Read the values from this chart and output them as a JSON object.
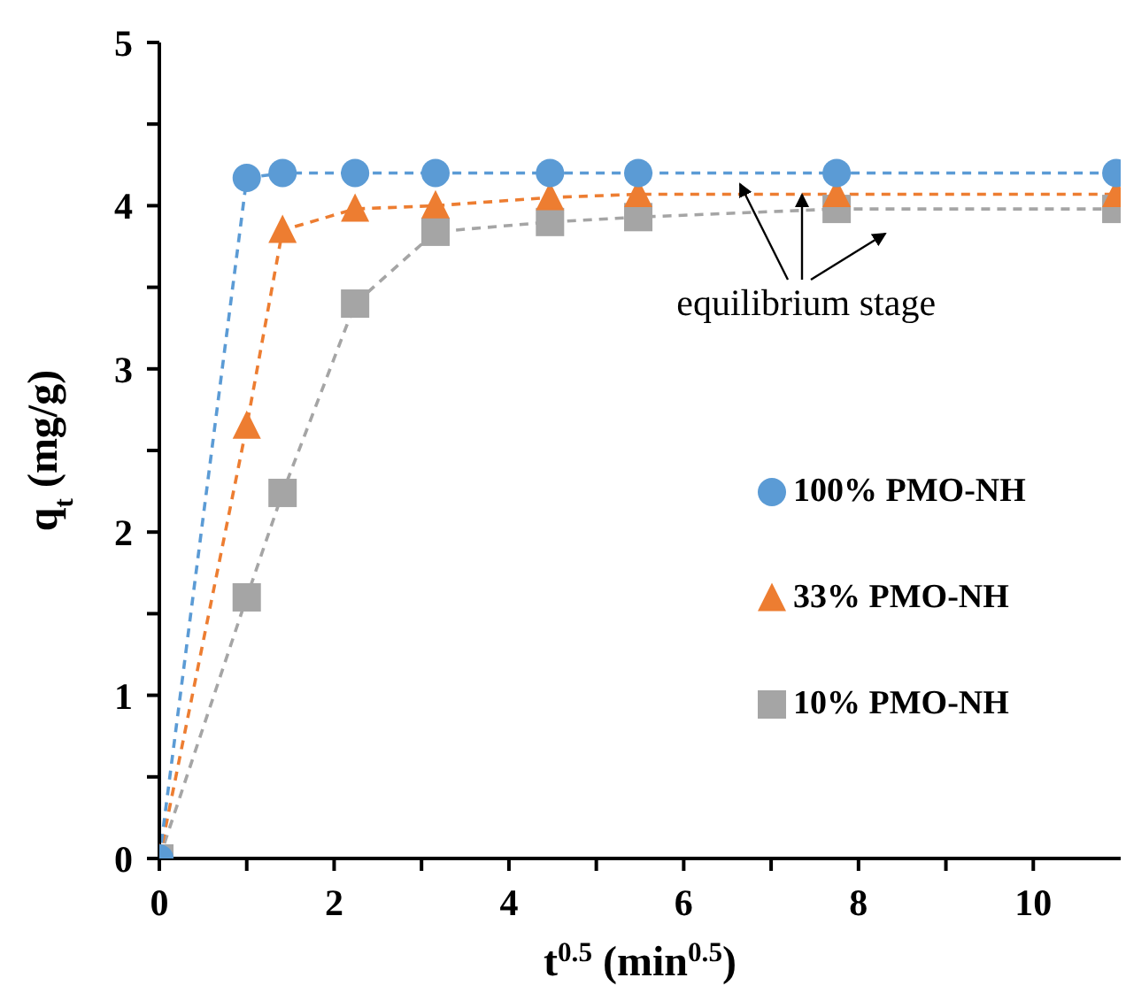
{
  "chart_data": {
    "type": "line",
    "xlabel": "t$^{0.5}$ (min$^{0.5}$)",
    "ylabel": "q$_{t}$ (mg/g)",
    "x": [
      0,
      1,
      1.41,
      2.24,
      3.16,
      4.47,
      5.48,
      7.75,
      10.95
    ],
    "xlim": [
      0,
      11
    ],
    "xticks": [
      0,
      {
        "value": 1,
        "label": null
      },
      2,
      {
        "value": 3,
        "label": null
      },
      4,
      {
        "value": 5,
        "label": null
      },
      6,
      {
        "value": 7,
        "label": null
      },
      8,
      {
        "value": 9,
        "label": null
      },
      10
    ],
    "ylim": [
      0,
      5
    ],
    "yticks": [
      0,
      {
        "value": 0.5,
        "label": null
      },
      1,
      {
        "value": 1.5,
        "label": null
      },
      2,
      {
        "value": 2.5,
        "label": null
      },
      3,
      {
        "value": 3.5,
        "label": null
      },
      4,
      {
        "value": 4.5,
        "label": null
      },
      5
    ],
    "line_style": "dashed",
    "legend": "right",
    "grid": false,
    "annotations": [
      {
        "text": "equilibrium stage",
        "x": 7.3,
        "y": 4.07
      }
    ],
    "series": [
      {
        "name": "100% PMO-NH",
        "color": "#5b9bd5",
        "marker": "circle",
        "values": [
          0,
          4.17,
          4.2,
          4.2,
          4.2,
          4.2,
          4.2,
          4.2,
          4.2
        ]
      },
      {
        "name": "33% PMO-NH",
        "color": "#ed7d31",
        "marker": "triangle",
        "values": [
          0,
          2.65,
          3.85,
          3.98,
          4.0,
          4.05,
          4.07,
          4.07,
          4.07
        ]
      },
      {
        "name": "10% PMO-NH",
        "color": "#a5a5a5",
        "marker": "square",
        "values": [
          0,
          1.6,
          2.24,
          3.4,
          3.84,
          3.9,
          3.93,
          3.98,
          3.98
        ]
      }
    ]
  }
}
